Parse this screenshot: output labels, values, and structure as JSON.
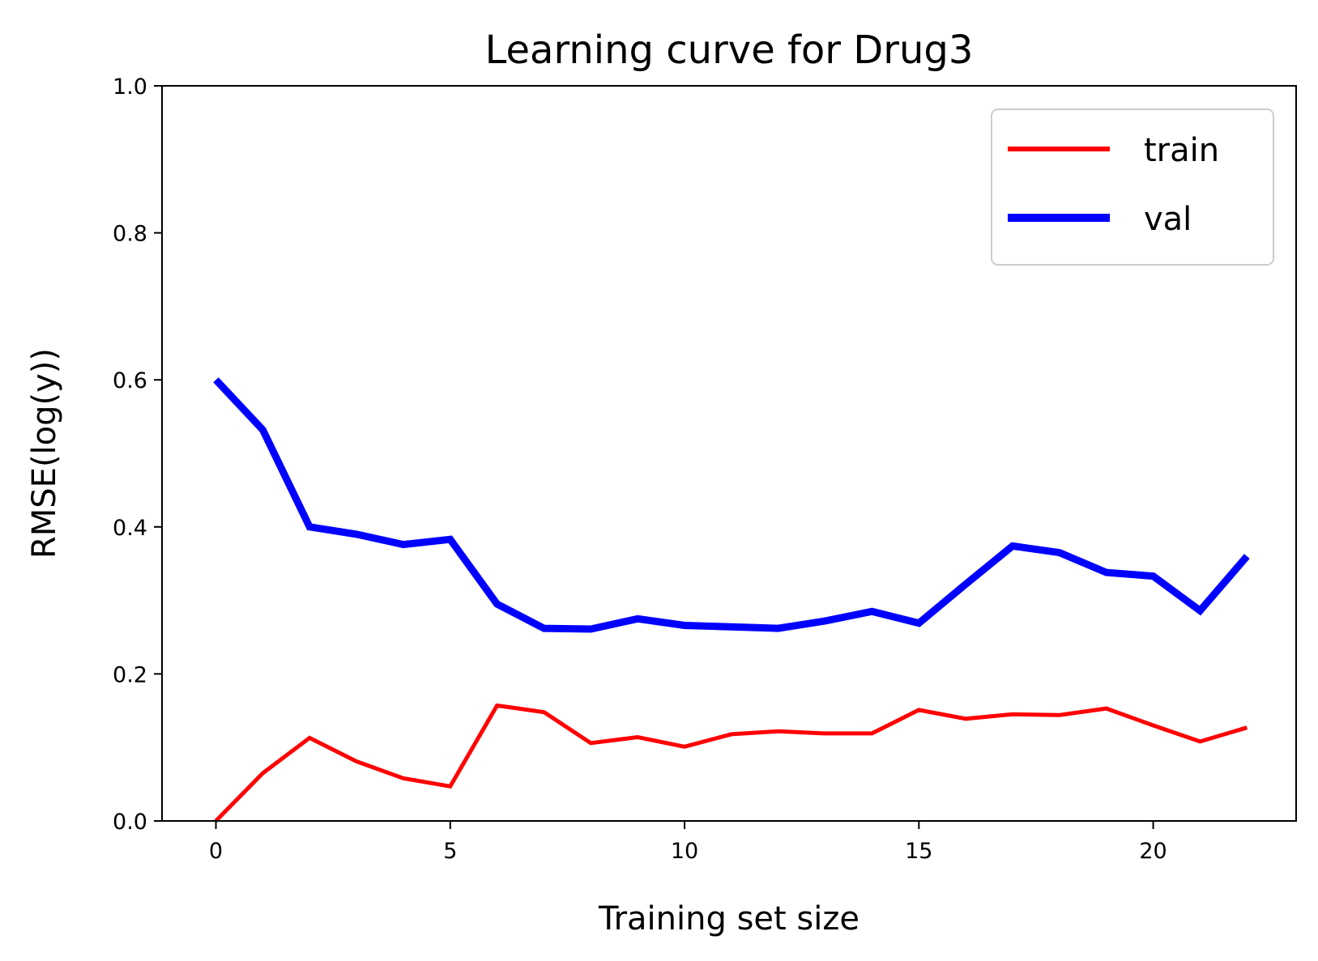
{
  "chart_data": {
    "type": "line",
    "title": "Learning curve for Drug3",
    "xlabel": "Training set size",
    "ylabel": "RMSE(log(y))",
    "xlim": [
      -1.15,
      23.05
    ],
    "ylim": [
      0,
      1.0
    ],
    "xticks": [
      0,
      5,
      10,
      15,
      20
    ],
    "xtick_labels": [
      "0",
      "5",
      "10",
      "15",
      "20"
    ],
    "yticks": [
      0.0,
      0.2,
      0.4,
      0.6,
      0.8,
      1.0
    ],
    "ytick_labels": [
      "0.0",
      "0.2",
      "0.4",
      "0.6",
      "0.8",
      "1.0"
    ],
    "grid": false,
    "legend_position": "top-right",
    "x": [
      0,
      1,
      2,
      3,
      4,
      5,
      6,
      7,
      8,
      9,
      10,
      11,
      12,
      13,
      14,
      15,
      16,
      17,
      18,
      19,
      20,
      21,
      22
    ],
    "series": [
      {
        "name": "train",
        "color": "#ff0000",
        "values": [
          0.0,
          0.065,
          0.113,
          0.081,
          0.058,
          0.047,
          0.157,
          0.148,
          0.106,
          0.114,
          0.101,
          0.118,
          0.122,
          0.119,
          0.119,
          0.151,
          0.139,
          0.145,
          0.144,
          0.153,
          0.13,
          0.108,
          0.127
        ]
      },
      {
        "name": "val",
        "color": "#0000ff",
        "values": [
          0.6,
          0.532,
          0.4,
          0.39,
          0.376,
          0.383,
          0.295,
          0.262,
          0.261,
          0.275,
          0.266,
          0.264,
          0.262,
          0.272,
          0.285,
          0.269,
          0.322,
          0.374,
          0.365,
          0.338,
          0.333,
          0.286,
          0.36
        ]
      }
    ]
  }
}
